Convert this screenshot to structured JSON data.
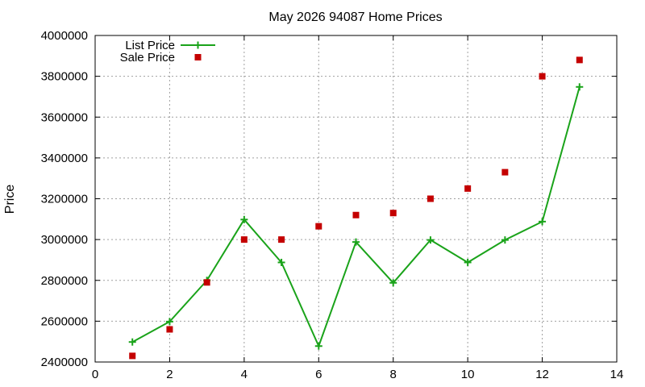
{
  "chart_data": {
    "type": "line",
    "title": "May 2026 94087 Home Prices",
    "xlabel": "",
    "ylabel": "Price",
    "xlim": [
      0,
      14
    ],
    "ylim": [
      2400000,
      4000000
    ],
    "x_ticks": [
      "0",
      "2",
      "4",
      "6",
      "8",
      "10",
      "12",
      "14"
    ],
    "y_ticks": [
      "2400000",
      "2600000",
      "2800000",
      "3000000",
      "3200000",
      "3400000",
      "3600000",
      "3800000",
      "4000000"
    ],
    "grid": true,
    "legend_position": "top-left",
    "series": [
      {
        "name": "List Price",
        "style": "linespoints",
        "marker": "plus",
        "color": "#1aa31a",
        "x": [
          1,
          2,
          3,
          4,
          5,
          6,
          7,
          8,
          9,
          10,
          11,
          12,
          13
        ],
        "y": [
          2498000,
          2598000,
          2800000,
          3098000,
          2888000,
          2478000,
          2988000,
          2788000,
          2998000,
          2888000,
          2998000,
          3088000,
          3748000
        ]
      },
      {
        "name": "Sale Price",
        "style": "points",
        "marker": "square",
        "color": "#c40000",
        "x": [
          1,
          2,
          3,
          4,
          5,
          6,
          7,
          8,
          9,
          10,
          11,
          12,
          13
        ],
        "y": [
          2430000,
          2560000,
          2790000,
          3000000,
          3000000,
          3065000,
          3120000,
          3130000,
          3200000,
          3250000,
          3330000,
          3800000,
          3880000
        ]
      }
    ]
  }
}
